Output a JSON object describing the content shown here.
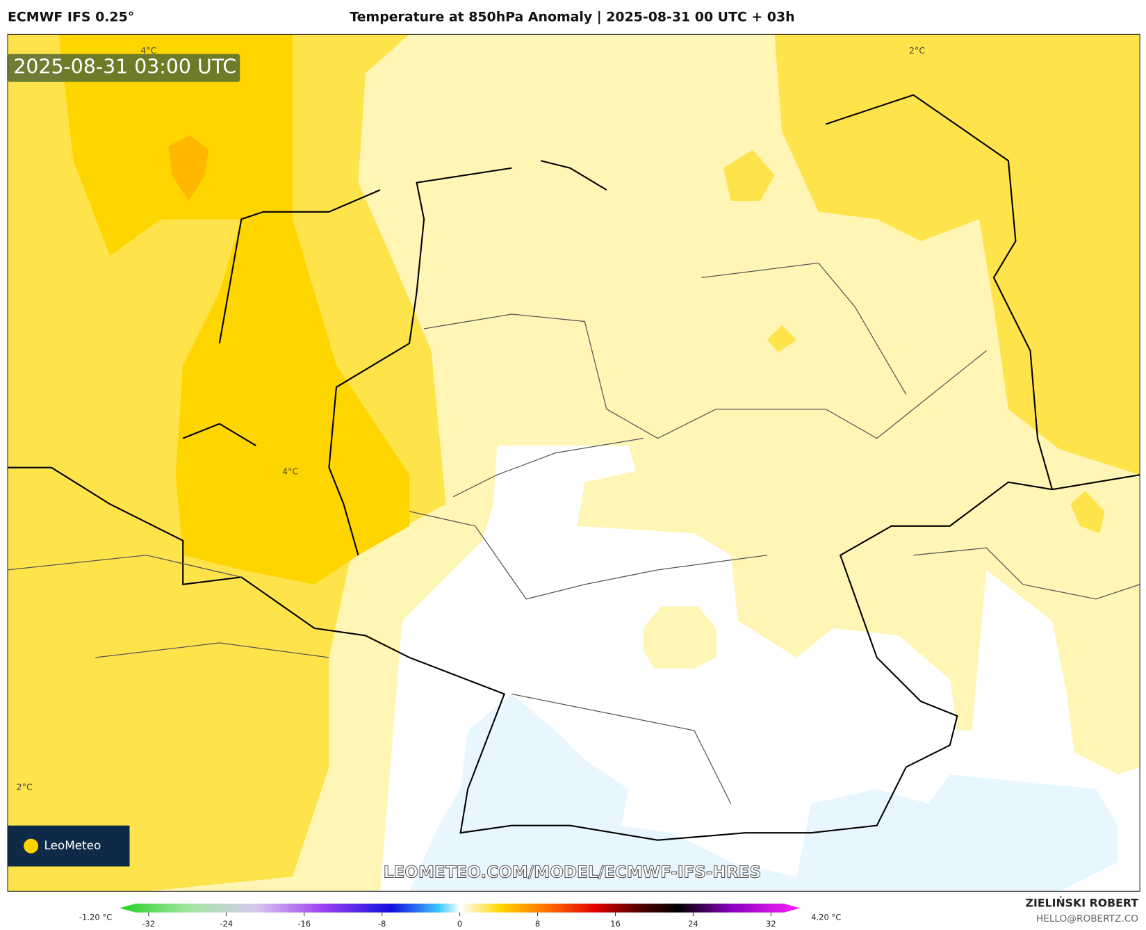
{
  "header": {
    "left": "ECMWF IFS 0.25°",
    "title": "Temperature at 850hPa Anomaly | 2025-08-31 00 UTC + 03h"
  },
  "map": {
    "timestamp": "2025-08-31 03:00 UTC",
    "contour_labels": [
      "4°C",
      "2°C",
      "4°C",
      "2°C"
    ],
    "watermark": "LEOMETEO.COM/MODEL/ECMWF-IFS-HRES",
    "logo": "LeoMeteo"
  },
  "colorbar": {
    "min_label": "-1.20 °C",
    "max_label": "4.20 °C",
    "range": [
      -35,
      35
    ],
    "ticks": [
      -32,
      -24,
      -16,
      -8,
      0,
      8,
      16,
      24,
      32
    ]
  },
  "footer": {
    "author": "ZIELIŃSKI ROBERT",
    "email": "HELLO@ROBERTZ.CO"
  }
}
